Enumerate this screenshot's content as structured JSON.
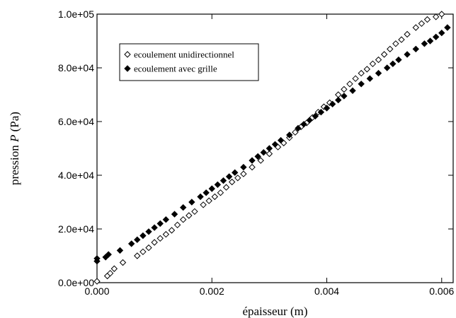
{
  "chart_data": {
    "type": "scatter",
    "xlabel": "épaisseur (m)",
    "ylabel_prefix": "pression ",
    "ylabel_var": "P",
    "ylabel_suffix": " (Pa)",
    "xlim": [
      0,
      0.0062
    ],
    "ylim": [
      0,
      100000
    ],
    "x_ticks": [
      0,
      0.002,
      0.004,
      0.006
    ],
    "x_tick_labels": [
      "0.000",
      "0.002",
      "0.004",
      "0.006"
    ],
    "y_ticks": [
      0,
      20000,
      40000,
      60000,
      80000,
      100000
    ],
    "y_tick_labels": [
      "0.0e+00",
      "2.0e+04",
      "4.0e+04",
      "6.0e+04",
      "8.0e+04",
      "1.0e+05"
    ],
    "legend": {
      "placement": "top-left"
    },
    "series": [
      {
        "name": "ecoulement unidirectionnel",
        "marker": "open-diamond",
        "color": "#000000",
        "points": [
          [
            0.0,
            500
          ],
          [
            0.00018,
            2500
          ],
          [
            0.00023,
            3500
          ],
          [
            0.0003,
            5200
          ],
          [
            0.00045,
            7500
          ],
          [
            0.0007,
            10000
          ],
          [
            0.0008,
            11500
          ],
          [
            0.0009,
            13000
          ],
          [
            0.001,
            15000
          ],
          [
            0.0011,
            16500
          ],
          [
            0.0012,
            18000
          ],
          [
            0.0013,
            19500
          ],
          [
            0.0014,
            21500
          ],
          [
            0.0015,
            23500
          ],
          [
            0.0016,
            25000
          ],
          [
            0.0017,
            26500
          ],
          [
            0.00185,
            29000
          ],
          [
            0.00195,
            30500
          ],
          [
            0.00205,
            32000
          ],
          [
            0.00215,
            33500
          ],
          [
            0.00225,
            35500
          ],
          [
            0.00235,
            37500
          ],
          [
            0.00245,
            39000
          ],
          [
            0.00255,
            40500
          ],
          [
            0.0027,
            43000
          ],
          [
            0.00285,
            45500
          ],
          [
            0.003,
            48000
          ],
          [
            0.00315,
            50500
          ],
          [
            0.00325,
            52000
          ],
          [
            0.00335,
            54000
          ],
          [
            0.00345,
            56000
          ],
          [
            0.00355,
            58000
          ],
          [
            0.00365,
            59500
          ],
          [
            0.00375,
            61500
          ],
          [
            0.00385,
            63500
          ],
          [
            0.00395,
            65500
          ],
          [
            0.00405,
            67000
          ],
          [
            0.0042,
            70000
          ],
          [
            0.0043,
            72000
          ],
          [
            0.0044,
            74000
          ],
          [
            0.0045,
            76000
          ],
          [
            0.0046,
            78000
          ],
          [
            0.0047,
            79500
          ],
          [
            0.0048,
            81500
          ],
          [
            0.0049,
            83000
          ],
          [
            0.005,
            85000
          ],
          [
            0.0051,
            87000
          ],
          [
            0.0052,
            89000
          ],
          [
            0.0053,
            90500
          ],
          [
            0.0054,
            92500
          ],
          [
            0.00555,
            95000
          ],
          [
            0.00565,
            96500
          ],
          [
            0.00575,
            98000
          ],
          [
            0.0059,
            99000
          ],
          [
            0.006,
            100000
          ]
        ]
      },
      {
        "name": "ecoulement avec grille",
        "marker": "filled-diamond",
        "color": "#000000",
        "points": [
          [
            0.0,
            8000
          ],
          [
            0.0,
            9000
          ],
          [
            0.00015,
            9500
          ],
          [
            0.0002,
            10500
          ],
          [
            0.0004,
            12000
          ],
          [
            0.0006,
            14500
          ],
          [
            0.0007,
            16000
          ],
          [
            0.0008,
            17500
          ],
          [
            0.0009,
            19000
          ],
          [
            0.001,
            20500
          ],
          [
            0.0011,
            22000
          ],
          [
            0.0012,
            23500
          ],
          [
            0.00135,
            25500
          ],
          [
            0.0015,
            28000
          ],
          [
            0.00165,
            30000
          ],
          [
            0.0018,
            32000
          ],
          [
            0.0019,
            33500
          ],
          [
            0.002,
            35000
          ],
          [
            0.0021,
            36500
          ],
          [
            0.0022,
            38000
          ],
          [
            0.0023,
            39500
          ],
          [
            0.0024,
            41000
          ],
          [
            0.00255,
            43000
          ],
          [
            0.0027,
            45500
          ],
          [
            0.0028,
            47000
          ],
          [
            0.0029,
            48500
          ],
          [
            0.003,
            50000
          ],
          [
            0.0031,
            51500
          ],
          [
            0.0032,
            53000
          ],
          [
            0.00335,
            55000
          ],
          [
            0.0035,
            57500
          ],
          [
            0.0036,
            59000
          ],
          [
            0.0037,
            60500
          ],
          [
            0.0038,
            62000
          ],
          [
            0.0039,
            63500
          ],
          [
            0.004,
            65000
          ],
          [
            0.0041,
            66500
          ],
          [
            0.0042,
            68000
          ],
          [
            0.0043,
            69500
          ],
          [
            0.00445,
            71500
          ],
          [
            0.0046,
            74000
          ],
          [
            0.00475,
            76000
          ],
          [
            0.0049,
            78000
          ],
          [
            0.00505,
            80000
          ],
          [
            0.00515,
            81500
          ],
          [
            0.00525,
            83000
          ],
          [
            0.0054,
            85000
          ],
          [
            0.00555,
            87000
          ],
          [
            0.0057,
            89000
          ],
          [
            0.0058,
            90000
          ],
          [
            0.0059,
            91500
          ],
          [
            0.006,
            93000
          ],
          [
            0.0061,
            95000
          ]
        ]
      }
    ]
  }
}
